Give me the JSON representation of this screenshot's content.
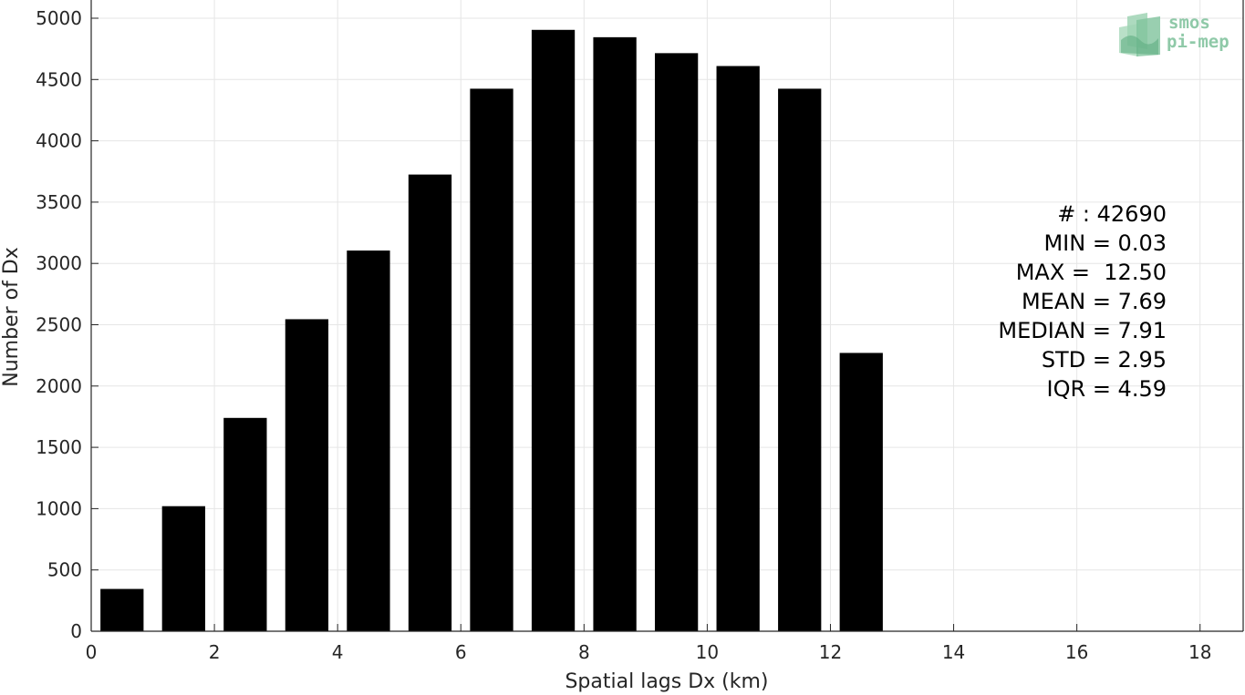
{
  "chart_data": {
    "type": "bar",
    "title": "",
    "xlabel": "Spatial lags Dx (km)",
    "ylabel": "Number of Dx",
    "xlim": [
      0,
      18.7
    ],
    "ylim": [
      0,
      5000
    ],
    "grid": true,
    "x": [
      0.5,
      1.5,
      2.5,
      3.5,
      4.5,
      5.5,
      6.5,
      7.5,
      8.5,
      9.5,
      10.5,
      11.5,
      12.5
    ],
    "values": [
      345,
      1020,
      1740,
      2545,
      3105,
      3725,
      4425,
      4905,
      4845,
      4715,
      4610,
      4425,
      2270
    ],
    "bar_width": 0.7,
    "bar_color": "#000000",
    "x_ticks": [
      "0",
      "2",
      "4",
      "6",
      "8",
      "10",
      "12",
      "14",
      "16",
      "18"
    ],
    "x_tick_values": [
      0,
      2,
      4,
      6,
      8,
      10,
      12,
      14,
      16,
      18
    ],
    "y_ticks": [
      "0",
      "500",
      "1000",
      "1500",
      "2000",
      "2500",
      "3000",
      "3500",
      "4000",
      "4500",
      "5000"
    ],
    "y_tick_values": [
      0,
      500,
      1000,
      1500,
      2000,
      2500,
      3000,
      3500,
      4000,
      4500,
      5000
    ],
    "annotations": [
      "# : 42690",
      "MIN = 0.03",
      "MAX =  12.50",
      "MEAN = 7.69",
      "MEDIAN = 7.91",
      "STD = 2.95",
      "IQR = 4.59"
    ]
  },
  "logo": {
    "line1": "smos",
    "line2": "pi-mep",
    "color": "#8fc9a8"
  }
}
